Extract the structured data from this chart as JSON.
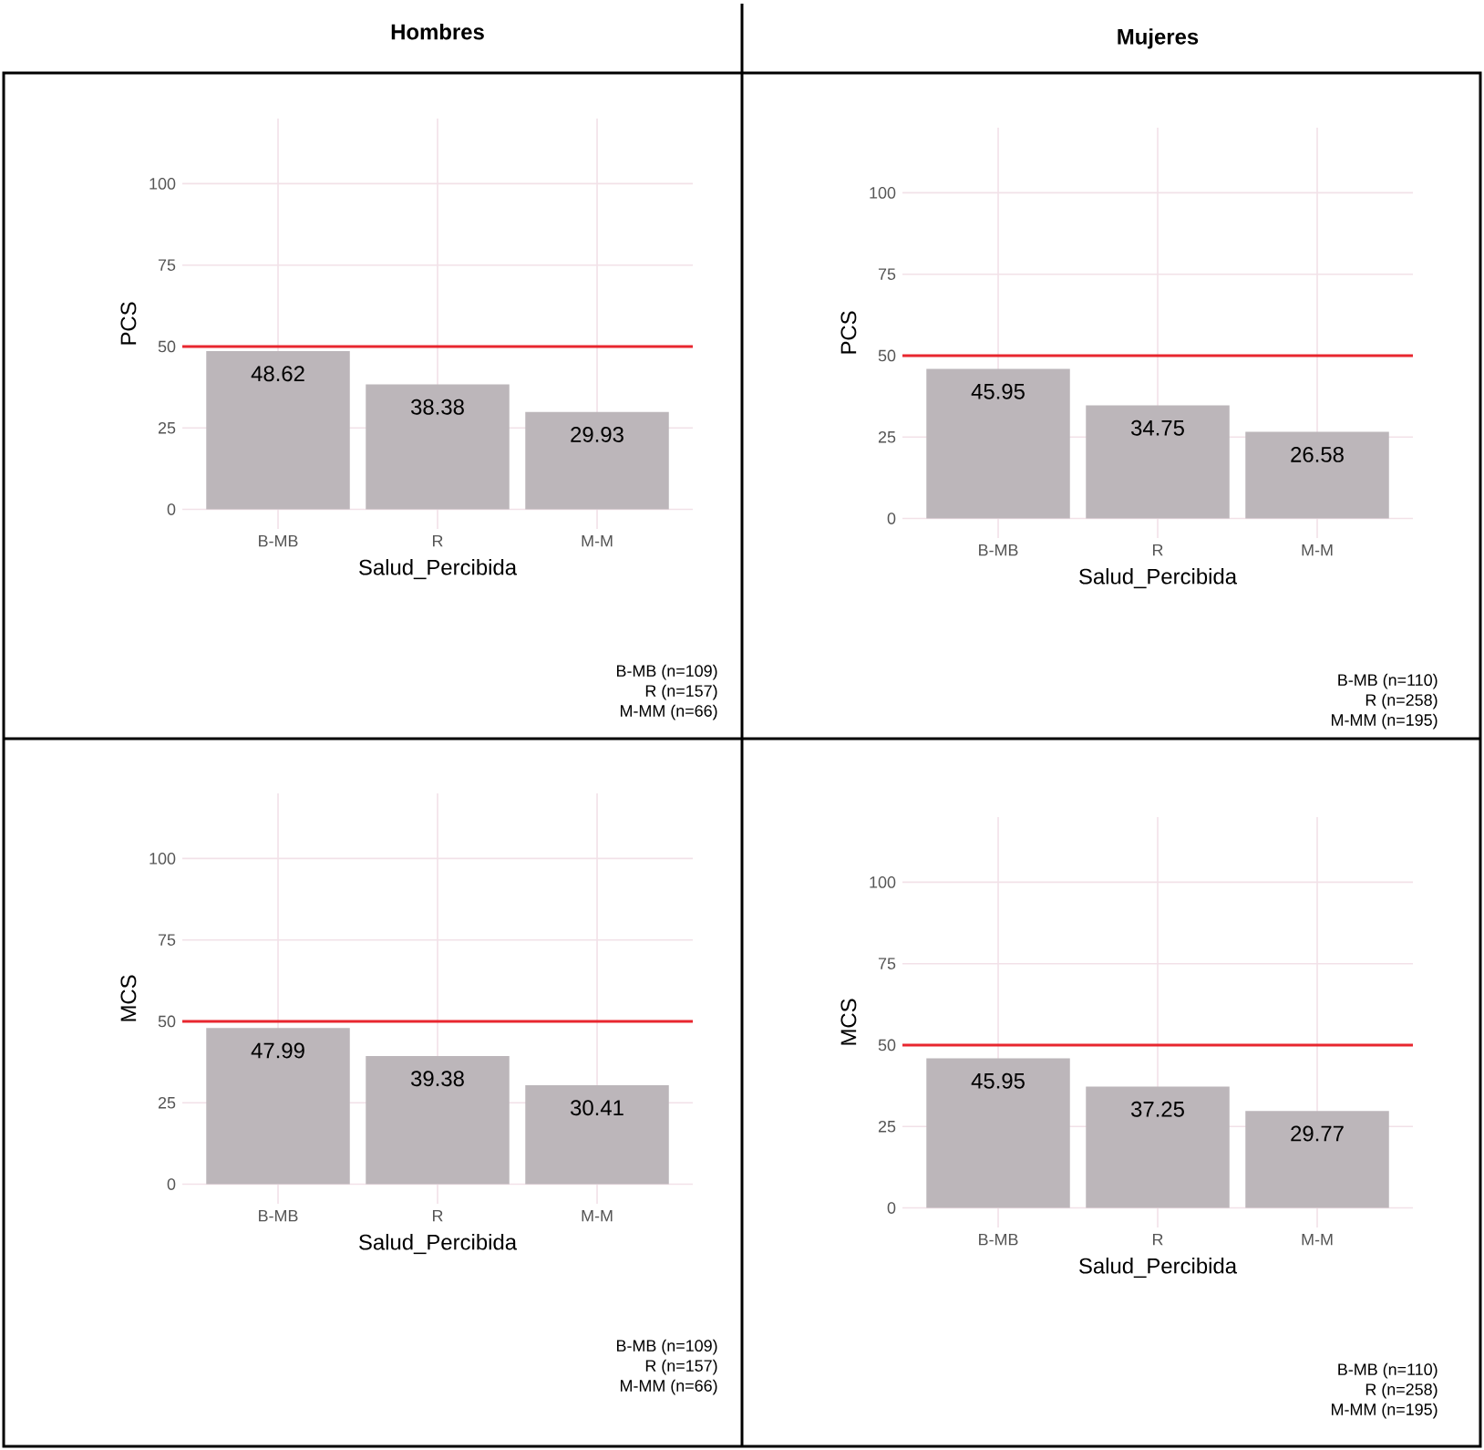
{
  "chart_data": [
    {
      "type": "bar",
      "title": "Hombres",
      "xlabel": "Salud_Percibida",
      "ylabel": "PCS",
      "categories": [
        "B-MB",
        "R",
        "M-M"
      ],
      "values": [
        48.62,
        38.38,
        29.93
      ],
      "color": "#bcb6ba",
      "ylim": [
        -6,
        120
      ],
      "yticks": [
        0,
        25,
        50,
        75,
        100
      ],
      "grid": true,
      "data_labels": true,
      "ref_lines": [
        {
          "axis": "y",
          "value": 50,
          "color": "#e8262f"
        }
      ],
      "annotations": [
        "B-MB (n=109)",
        "R (n=157)",
        "M-MM (n=66)"
      ]
    },
    {
      "type": "bar",
      "title": "Mujeres",
      "xlabel": "Salud_Percibida",
      "ylabel": "PCS",
      "categories": [
        "B-MB",
        "R",
        "M-M"
      ],
      "values": [
        45.95,
        34.75,
        26.58
      ],
      "color": "#bcb6ba",
      "ylim": [
        -6,
        120
      ],
      "yticks": [
        0,
        25,
        50,
        75,
        100
      ],
      "grid": true,
      "data_labels": true,
      "ref_lines": [
        {
          "axis": "y",
          "value": 50,
          "color": "#e8262f"
        }
      ],
      "annotations": [
        "B-MB (n=110)",
        "R (n=258)",
        "M-MM (n=195)"
      ]
    },
    {
      "type": "bar",
      "xlabel": "Salud_Percibida",
      "ylabel": "MCS",
      "categories": [
        "B-MB",
        "R",
        "M-M"
      ],
      "values": [
        47.99,
        39.38,
        30.41
      ],
      "color": "#bcb6ba",
      "ylim": [
        -6,
        120
      ],
      "yticks": [
        0,
        25,
        50,
        75,
        100
      ],
      "grid": true,
      "data_labels": true,
      "ref_lines": [
        {
          "axis": "y",
          "value": 50,
          "color": "#e8262f"
        }
      ],
      "annotations": [
        "B-MB (n=109)",
        "R (n=157)",
        "M-MM (n=66)"
      ]
    },
    {
      "type": "bar",
      "xlabel": "Salud_Percibida",
      "ylabel": "MCS",
      "categories": [
        "B-MB",
        "R",
        "M-M"
      ],
      "values": [
        45.95,
        37.25,
        29.77
      ],
      "color": "#bcb6ba",
      "ylim": [
        -6,
        120
      ],
      "yticks": [
        0,
        25,
        50,
        75,
        100
      ],
      "grid": true,
      "data_labels": true,
      "ref_lines": [
        {
          "axis": "y",
          "value": 50,
          "color": "#e8262f"
        }
      ],
      "annotations": [
        "B-MB (n=110)",
        "R (n=258)",
        "M-MM (n=195)"
      ]
    }
  ]
}
